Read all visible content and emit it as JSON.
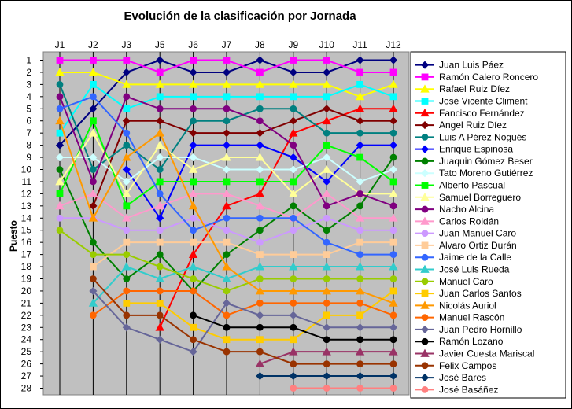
{
  "chart_data": {
    "type": "line",
    "title": "Evolución de la clasificación por Jornada",
    "ylabel": "Puesto",
    "xlabel": "",
    "categories": [
      "J1",
      "J2",
      "J3",
      "J5",
      "J6",
      "J7",
      "J8",
      "J9",
      "J10",
      "J11",
      "J12"
    ],
    "y_ticks": [
      "1",
      "2",
      "3",
      "4",
      "5",
      "6",
      "7",
      "8",
      "9",
      "10",
      "11",
      "12",
      "13",
      "14",
      "15",
      "16",
      "17",
      "18",
      "19",
      "20",
      "21",
      "22",
      "23",
      "24",
      "25",
      "26",
      "27",
      "28"
    ],
    "ylim": [
      1,
      28
    ],
    "y_inverted": true,
    "legend_position": "right",
    "series": [
      {
        "name": "Juan Luis Páez",
        "color": "#000080",
        "marker": "diamond",
        "values": [
          8,
          5,
          2,
          1,
          2,
          2,
          1,
          2,
          2,
          1,
          1
        ]
      },
      {
        "name": "Ramón Calero Roncero",
        "color": "#FF00FF",
        "marker": "square",
        "values": [
          1,
          1,
          1,
          2,
          1,
          1,
          2,
          1,
          1,
          2,
          2
        ]
      },
      {
        "name": "Rafael Ruiz Díez",
        "color": "#FFFF00",
        "marker": "triangle",
        "values": [
          2,
          2,
          3,
          3,
          3,
          3,
          3,
          3,
          3,
          4,
          3
        ]
      },
      {
        "name": "José Vicente Climent",
        "color": "#00FFFF",
        "marker": "square",
        "values": [
          7,
          3,
          5,
          4,
          4,
          4,
          4,
          4,
          4,
          3,
          4
        ]
      },
      {
        "name": "Fancisco Fernández",
        "color": "#FF0000",
        "marker": "triangle",
        "values": [
          null,
          null,
          null,
          23,
          17,
          13,
          12,
          7,
          6,
          5,
          5
        ]
      },
      {
        "name": "Angel Ruiz Díez",
        "color": "#800000",
        "marker": "diamond",
        "values": [
          null,
          13,
          6,
          6,
          7,
          7,
          7,
          6,
          5,
          6,
          6
        ]
      },
      {
        "name": "Luis A Pérez Nogués",
        "color": "#008080",
        "marker": "circle",
        "values": [
          3,
          10,
          8,
          10,
          6,
          6,
          5,
          5,
          7,
          7,
          7
        ]
      },
      {
        "name": "Enrique Espinosa",
        "color": "#0000FF",
        "marker": "diamond",
        "values": [
          null,
          null,
          10,
          14,
          8,
          8,
          8,
          9,
          11,
          8,
          8
        ]
      },
      {
        "name": "Juaquin Gómez Beser",
        "color": "#008000",
        "marker": "circle",
        "values": [
          10,
          16,
          19,
          17,
          20,
          17,
          15,
          13,
          15,
          13,
          9
        ]
      },
      {
        "name": "Tato Moreno Gutiérrez",
        "color": "#CCFFFF",
        "marker": "diamond",
        "values": [
          9,
          9,
          11,
          9,
          9,
          10,
          10,
          10,
          9,
          11,
          10
        ]
      },
      {
        "name": "Alberto Pascual",
        "color": "#00FF00",
        "marker": "square",
        "values": [
          12,
          6,
          13,
          11,
          11,
          11,
          11,
          11,
          8,
          9,
          11
        ]
      },
      {
        "name": "Samuel Borreguero",
        "color": "#FFFF99",
        "marker": "triangle",
        "values": [
          11,
          7,
          12,
          8,
          10,
          9,
          9,
          12,
          10,
          12,
          12
        ]
      },
      {
        "name": "Nacho Alcina",
        "color": "#800080",
        "marker": "circle",
        "values": [
          4,
          11,
          4,
          5,
          5,
          5,
          6,
          8,
          13,
          12,
          13
        ]
      },
      {
        "name": "Carlos Roldán",
        "color": "#FF99CC",
        "marker": "triangle",
        "values": [
          13,
          12,
          14,
          13,
          12,
          12,
          13,
          14,
          12,
          14,
          14
        ]
      },
      {
        "name": "Juan Manuel Caro",
        "color": "#CC99FF",
        "marker": "circle",
        "values": [
          14,
          14,
          15,
          15,
          14,
          15,
          16,
          15,
          14,
          15,
          15
        ]
      },
      {
        "name": "Alvaro Ortiz Durán",
        "color": "#FFCC99",
        "marker": "square",
        "values": [
          null,
          18,
          16,
          16,
          16,
          16,
          17,
          17,
          17,
          16,
          16
        ]
      },
      {
        "name": "Jaime de la Calle",
        "color": "#3366FF",
        "marker": "circle",
        "values": [
          5,
          4,
          7,
          12,
          15,
          14,
          14,
          14,
          16,
          17,
          17
        ]
      },
      {
        "name": "José Luis Rueda",
        "color": "#33CCCC",
        "marker": "triangle",
        "values": [
          null,
          21,
          18,
          19,
          18,
          19,
          18,
          18,
          18,
          18,
          18
        ]
      },
      {
        "name": "Manuel Caro",
        "color": "#99CC00",
        "marker": "circle",
        "values": [
          15,
          17,
          17,
          18,
          19,
          20,
          19,
          19,
          19,
          19,
          19
        ]
      },
      {
        "name": "Juan Carlos Santos",
        "color": "#FFCC00",
        "marker": "square",
        "values": [
          null,
          null,
          21,
          21,
          23,
          24,
          24,
          24,
          22,
          22,
          20
        ]
      },
      {
        "name": "Nicolás Auriol",
        "color": "#FF9900",
        "marker": "triangle",
        "values": [
          6,
          14,
          9,
          7,
          13,
          18,
          20,
          20,
          20,
          20,
          21
        ]
      },
      {
        "name": "Manuel Rascón",
        "color": "#FF6600",
        "marker": "circle",
        "values": [
          null,
          22,
          20,
          20,
          20,
          22,
          21,
          21,
          21,
          21,
          22
        ]
      },
      {
        "name": "Juan Pedro Hornillo",
        "color": "#666699",
        "marker": "diamond",
        "values": [
          null,
          20,
          23,
          24,
          25,
          21,
          22,
          22,
          23,
          23,
          23
        ]
      },
      {
        "name": "Ramón Lozano",
        "color": "#000000",
        "marker": "circle",
        "values": [
          null,
          null,
          null,
          null,
          22,
          23,
          23,
          23,
          24,
          24,
          24
        ]
      },
      {
        "name": "Javier Cuesta Mariscal",
        "color": "#993366",
        "marker": "triangle",
        "values": [
          null,
          null,
          null,
          null,
          null,
          null,
          26,
          25,
          25,
          25,
          25
        ]
      },
      {
        "name": "Felix Campos",
        "color": "#993300",
        "marker": "circle",
        "values": [
          null,
          19,
          22,
          22,
          24,
          25,
          25,
          26,
          26,
          26,
          26
        ]
      },
      {
        "name": "José Bares",
        "color": "#003366",
        "marker": "diamond",
        "values": [
          null,
          null,
          null,
          null,
          null,
          null,
          27,
          27,
          27,
          27,
          27
        ]
      },
      {
        "name": "José Basáñez",
        "color": "#FF8080",
        "marker": "circle",
        "values": [
          null,
          null,
          null,
          null,
          null,
          null,
          null,
          28,
          28,
          28,
          28
        ]
      }
    ]
  }
}
